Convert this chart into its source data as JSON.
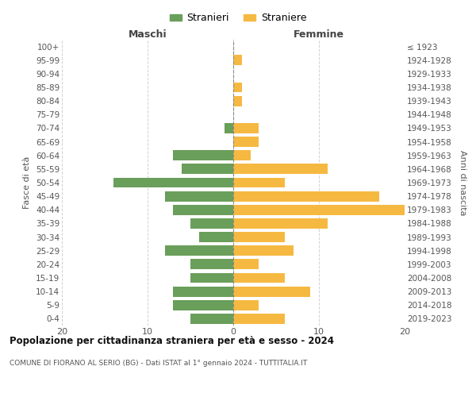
{
  "age_groups": [
    "100+",
    "95-99",
    "90-94",
    "85-89",
    "80-84",
    "75-79",
    "70-74",
    "65-69",
    "60-64",
    "55-59",
    "50-54",
    "45-49",
    "40-44",
    "35-39",
    "30-34",
    "25-29",
    "20-24",
    "15-19",
    "10-14",
    "5-9",
    "0-4"
  ],
  "birth_years": [
    "≤ 1923",
    "1924-1928",
    "1929-1933",
    "1934-1938",
    "1939-1943",
    "1944-1948",
    "1949-1953",
    "1954-1958",
    "1959-1963",
    "1964-1968",
    "1969-1973",
    "1974-1978",
    "1979-1983",
    "1984-1988",
    "1989-1993",
    "1994-1998",
    "1999-2003",
    "2004-2008",
    "2009-2013",
    "2014-2018",
    "2019-2023"
  ],
  "maschi": [
    0,
    0,
    0,
    0,
    0,
    0,
    1,
    0,
    7,
    6,
    14,
    8,
    7,
    5,
    4,
    8,
    5,
    5,
    7,
    7,
    5
  ],
  "femmine": [
    0,
    1,
    0,
    1,
    1,
    0,
    3,
    3,
    2,
    11,
    6,
    17,
    20,
    11,
    6,
    7,
    3,
    6,
    9,
    3,
    6
  ],
  "maschi_color": "#6a9e5b",
  "femmine_color": "#f5b942",
  "grid_color": "#cccccc",
  "title": "Popolazione per cittadinanza straniera per età e sesso - 2024",
  "subtitle": "COMUNE DI FIORANO AL SERIO (BG) - Dati ISTAT al 1° gennaio 2024 - TUTTITALIA.IT",
  "left_label": "Maschi",
  "right_label": "Femmine",
  "ylabel_left": "Fasce di età",
  "ylabel_right": "Anni di nascita",
  "xlim": 20,
  "legend_maschi": "Stranieri",
  "legend_femmine": "Straniere"
}
